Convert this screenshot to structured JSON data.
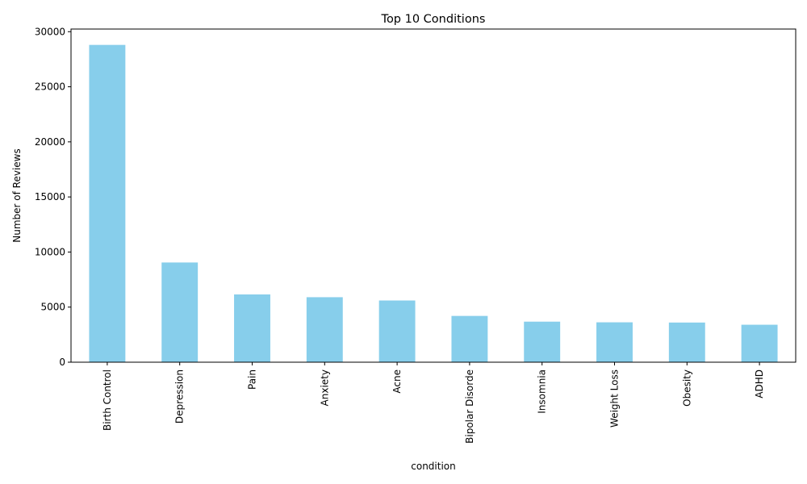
{
  "chart_data": {
    "type": "bar",
    "title": "Top 10 Conditions",
    "xlabel": "condition",
    "ylabel": "Number of Reviews",
    "categories": [
      "Birth Control",
      "Depression",
      "Pain",
      "Anxiety",
      "Acne",
      "Bipolar Disorde",
      "Insomnia",
      "Weight Loss",
      "Obesity",
      "ADHD"
    ],
    "values": [
      28800,
      9050,
      6150,
      5900,
      5600,
      4200,
      3680,
      3620,
      3600,
      3400
    ],
    "ylim": [
      0,
      30240
    ],
    "yticks": [
      0,
      5000,
      10000,
      15000,
      20000,
      25000,
      30000
    ],
    "ytick_labels": [
      "0",
      "5000",
      "10000",
      "15000",
      "20000",
      "25000",
      "30000"
    ],
    "bar_color": "#87ceeb",
    "grid": false,
    "legend": "none"
  }
}
